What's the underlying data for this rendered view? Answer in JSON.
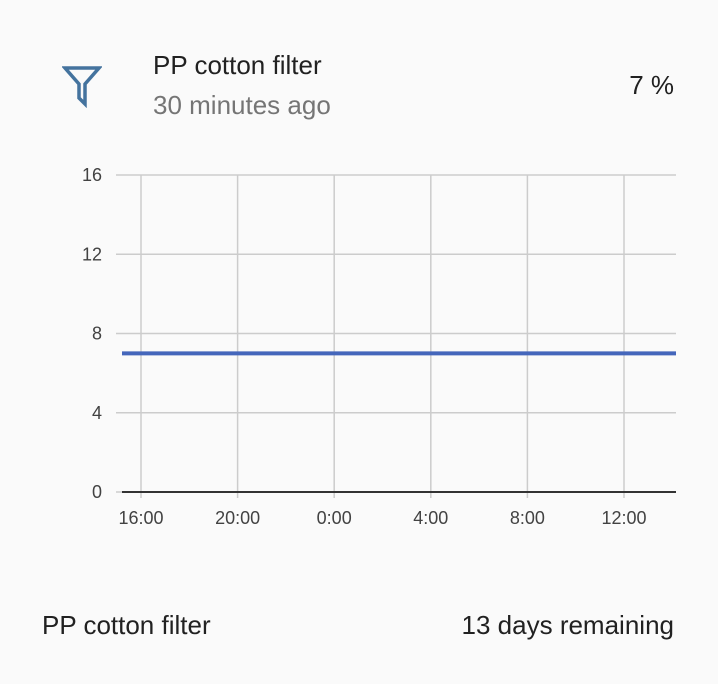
{
  "header": {
    "icon": "filter-icon",
    "title": "PP cotton filter",
    "subtitle": "30 minutes ago",
    "value": "7 %"
  },
  "chart_data": {
    "type": "line",
    "x": [
      "16:00",
      "20:00",
      "0:00",
      "4:00",
      "8:00",
      "12:00"
    ],
    "series": [
      {
        "values": [
          7,
          7,
          7,
          7,
          7,
          7
        ]
      }
    ],
    "y_ticks": [
      "0",
      "4",
      "8",
      "12",
      "16"
    ],
    "ylim": [
      0,
      16
    ],
    "grid": true,
    "line_color": "#4466bb",
    "title": "",
    "xlabel": "",
    "ylabel": ""
  },
  "footer": {
    "name": "PP cotton filter",
    "remaining": "13 days remaining"
  }
}
